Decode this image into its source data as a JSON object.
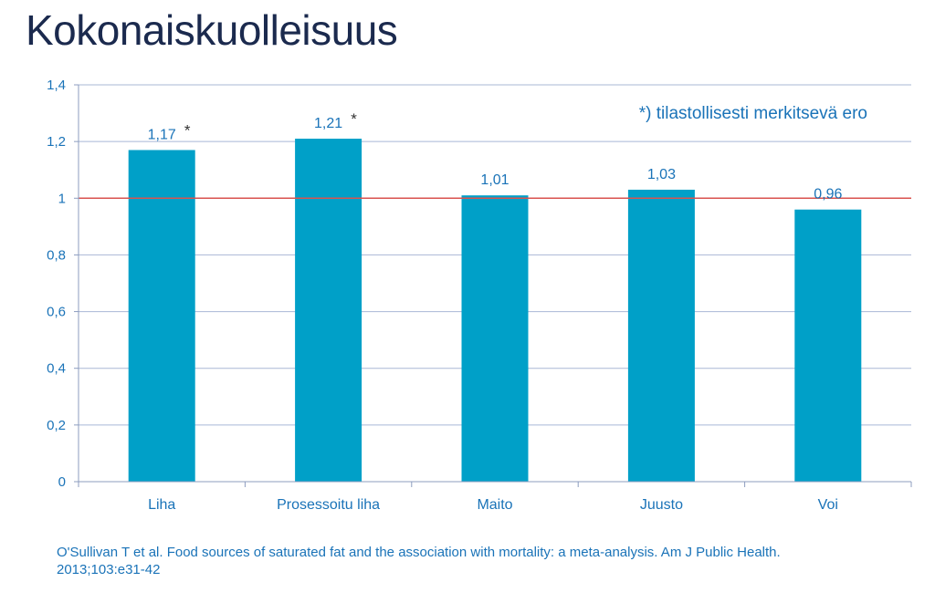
{
  "page": {
    "title": "Kokonaiskuolleisuus",
    "source": "O'Sullivan T et al. Food sources of saturated fat and the association with mortality: a meta-analysis. Am J Public Health. 2013;103:e31-42"
  },
  "chart_data": {
    "type": "bar",
    "title": "Kokonaiskuolleisuus",
    "categories": [
      "Liha",
      "Prosessoitu liha",
      "Maito",
      "Juusto",
      "Voi"
    ],
    "values": [
      1.17,
      1.21,
      1.01,
      1.03,
      0.96
    ],
    "value_labels": [
      "1,17",
      "1,21",
      "1,01",
      "1,03",
      "0,96"
    ],
    "significance_markers": [
      "*",
      "*",
      "",
      "",
      ""
    ],
    "ylim": [
      0,
      1.4
    ],
    "yticks": [
      0,
      0.2,
      0.4,
      0.6,
      0.8,
      1,
      1.2,
      1.4
    ],
    "ytick_labels": [
      "0",
      "0,2",
      "0,4",
      "0,6",
      "0,8",
      "1",
      "1,2",
      "1,4"
    ],
    "reference_line": 1,
    "annotation": "*) tilastollisesti merkitsevä ero",
    "grid": true,
    "xlabel": "",
    "ylabel": "",
    "colors": {
      "bar": "#00a0c8",
      "reference_line": "#d9534f",
      "grid": "#a9b7d6",
      "axis": "#8c9cbf",
      "label": "#1a73b8",
      "marker": "#333333"
    }
  }
}
